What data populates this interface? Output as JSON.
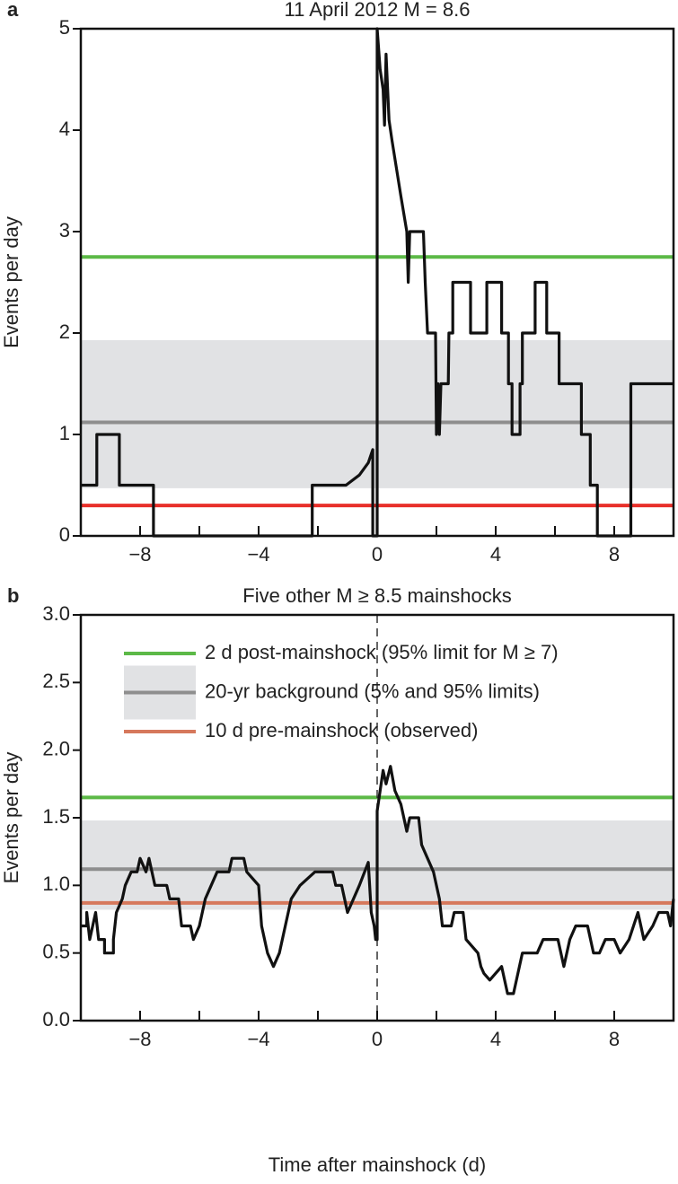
{
  "chart_data": [
    {
      "type": "line",
      "panel_label": "a",
      "title": "11 April 2012 M = 8.6",
      "ylabel": "Events per day",
      "xlim": [
        -10,
        10
      ],
      "ylim": [
        0,
        5
      ],
      "xticks": [
        {
          "value": -8,
          "label": "−8"
        },
        {
          "value": -4,
          "label": "−4"
        },
        0,
        4,
        8
      ],
      "xminorticks": [
        -6,
        -2,
        2,
        6
      ],
      "yticks": [
        0,
        1,
        2,
        3,
        4,
        5
      ],
      "vline": 0,
      "band": {
        "color": "#e1e2e4",
        "range": [
          0.47,
          1.93
        ]
      },
      "hlines": [
        {
          "color": "#5cb947",
          "value": 2.75
        },
        {
          "color": "#8e8e8e",
          "value": 1.12
        },
        {
          "color": "#e8302a",
          "value": 0.3
        }
      ],
      "color": "#111111",
      "x": [
        -10,
        -9.46,
        -9.46,
        -8.7,
        -8.7,
        -7.55,
        -7.55,
        -2.19,
        -2.19,
        -1.05,
        -0.6,
        -0.3,
        -0.15,
        -0.15,
        0,
        0,
        0.1,
        0.2,
        0.25,
        0.3,
        0.4,
        0.5,
        0.8,
        1.0,
        1.05,
        1.1,
        1.56,
        1.62,
        1.7,
        1.97,
        2.0,
        2.05,
        2.1,
        2.15,
        2.4,
        2.42,
        2.55,
        2.55,
        3.15,
        3.15,
        3.7,
        3.7,
        4.2,
        4.2,
        4.43,
        4.43,
        4.55,
        4.55,
        4.82,
        4.82,
        4.9,
        4.9,
        5.33,
        5.33,
        5.72,
        5.72,
        6.14,
        6.14,
        6.89,
        6.89,
        7.19,
        7.19,
        7.43,
        7.43,
        8.56,
        8.56,
        10
      ],
      "values": [
        0.5,
        0.5,
        1,
        1,
        0.5,
        0.5,
        0,
        0,
        0.5,
        0.5,
        0.6,
        0.72,
        0.85,
        0,
        0,
        5,
        4.6,
        4.4,
        4.05,
        4.75,
        4.1,
        3.9,
        3.35,
        3.0,
        2.5,
        3.0,
        3.0,
        2.5,
        2.0,
        2.0,
        1.0,
        1.5,
        1.0,
        1.5,
        1.5,
        2.0,
        2.0,
        2.5,
        2.5,
        2.0,
        2.0,
        2.5,
        2.5,
        2.0,
        2.0,
        1.5,
        1.5,
        1.0,
        1.0,
        1.5,
        1.5,
        2.0,
        2.0,
        2.5,
        2.5,
        2.0,
        2.0,
        1.5,
        1.5,
        1.0,
        1.0,
        0.5,
        0.5,
        0,
        0,
        1.5,
        1.5
      ]
    },
    {
      "type": "line",
      "panel_label": "b",
      "title": "Five other M ≥ 8.5 mainshocks",
      "ylabel": "Events per day",
      "xlabel": "Time after mainshock (d)",
      "xlim": [
        -10,
        10
      ],
      "ylim": [
        0,
        3
      ],
      "xticks": [
        {
          "value": -8,
          "label": "−8"
        },
        {
          "value": -4,
          "label": "−4"
        },
        0,
        4,
        8
      ],
      "xminorticks": [
        -6,
        -2,
        2,
        6
      ],
      "yticks": [
        {
          "value": 0,
          "label": "0.0"
        },
        0.5,
        {
          "value": 1,
          "label": "1.0"
        },
        1.5,
        {
          "value": 2,
          "label": "2.0"
        },
        2.5,
        {
          "value": 3,
          "label": "3.0"
        }
      ],
      "vline": 0,
      "band": {
        "color": "#e1e2e4",
        "range": [
          0.82,
          1.48
        ]
      },
      "hlines": [
        {
          "name": "2 d post-mainshock (95% limit for M ≥ 7)",
          "color": "#5cb947",
          "value": 1.65
        },
        {
          "name": "20-yr background (5% and 95% limits)",
          "color": "#8e8e8e",
          "value": 1.12,
          "with_band": true
        },
        {
          "name": "10 d pre-mainshock (observed)",
          "color": "#d6785c",
          "value": 0.87
        }
      ],
      "legend": "upper left",
      "color": "#111111",
      "x": [
        -10,
        -9.8,
        -9.8,
        -9.7,
        -9.5,
        -9.4,
        -9.2,
        -9.2,
        -8.9,
        -8.9,
        -8.8,
        -8.6,
        -8.5,
        -8.3,
        -8.1,
        -8.0,
        -7.8,
        -7.7,
        -7.5,
        -7.1,
        -7.0,
        -6.7,
        -6.6,
        -6.3,
        -6.2,
        -6.0,
        -5.8,
        -5.6,
        -5.4,
        -5.0,
        -4.9,
        -4.5,
        -4.4,
        -4.0,
        -3.9,
        -3.7,
        -3.5,
        -3.3,
        -3.1,
        -2.9,
        -2.6,
        -2.1,
        -1.5,
        -1.4,
        -1.2,
        -1.0,
        -0.6,
        -0.3,
        -0.2,
        -0.1,
        -0.05,
        0,
        0,
        0.1,
        0.2,
        0.3,
        0.45,
        0.6,
        0.8,
        0.9,
        1.0,
        1.1,
        1.4,
        1.5,
        1.7,
        1.9,
        2.1,
        2.2,
        2.5,
        2.6,
        2.9,
        3.0,
        3.4,
        3.5,
        3.6,
        3.8,
        4.2,
        4.4,
        4.6,
        4.7,
        4.9,
        5.4,
        5.6,
        6.1,
        6.3,
        6.5,
        6.7,
        7.1,
        7.3,
        7.5,
        7.7,
        8.0,
        8.2,
        8.5,
        8.8,
        9.0,
        9.3,
        9.5,
        9.8,
        9.9,
        10
      ],
      "values": [
        0.7,
        0.7,
        0.8,
        0.6,
        0.8,
        0.6,
        0.6,
        0.5,
        0.5,
        0.6,
        0.8,
        0.9,
        1.0,
        1.1,
        1.1,
        1.2,
        1.1,
        1.2,
        1.0,
        1.0,
        0.9,
        0.9,
        0.7,
        0.7,
        0.6,
        0.7,
        0.9,
        1.0,
        1.1,
        1.1,
        1.2,
        1.2,
        1.1,
        1.0,
        0.7,
        0.5,
        0.4,
        0.5,
        0.7,
        0.9,
        1.0,
        1.1,
        1.1,
        1.0,
        1.0,
        0.8,
        1.0,
        1.17,
        0.8,
        0.7,
        0.6,
        0.6,
        1.55,
        1.7,
        1.85,
        1.75,
        1.88,
        1.7,
        1.6,
        1.5,
        1.4,
        1.5,
        1.5,
        1.3,
        1.2,
        1.1,
        0.9,
        0.7,
        0.7,
        0.8,
        0.8,
        0.6,
        0.5,
        0.4,
        0.35,
        0.3,
        0.4,
        0.2,
        0.2,
        0.3,
        0.5,
        0.5,
        0.6,
        0.6,
        0.4,
        0.6,
        0.7,
        0.7,
        0.5,
        0.5,
        0.6,
        0.6,
        0.5,
        0.6,
        0.8,
        0.6,
        0.7,
        0.8,
        0.8,
        0.7,
        0.9
      ]
    }
  ]
}
